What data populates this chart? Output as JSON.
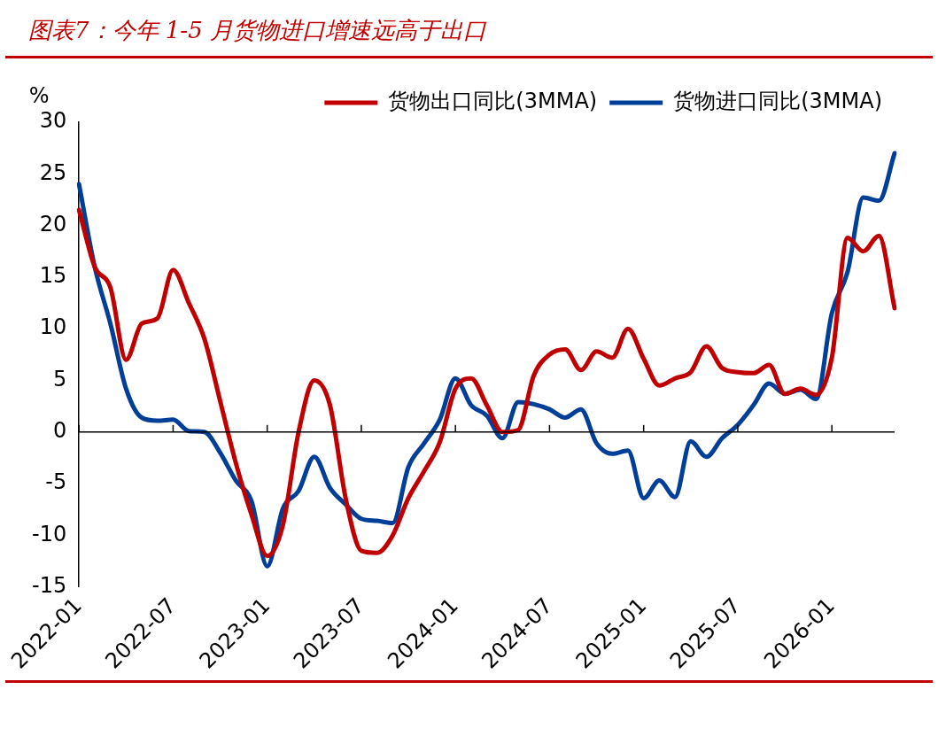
{
  "chart_data": {
    "type": "line",
    "title": "图表7：今年 1-5 月货物进口增速远高于出口",
    "ylabel": "%",
    "categories": [
      "2022-01",
      null,
      null,
      null,
      null,
      null,
      "2022-07",
      null,
      null,
      null,
      null,
      null,
      "2023-01",
      null,
      null,
      null,
      null,
      null,
      "2023-07",
      null,
      null,
      null,
      null,
      null,
      "2024-01",
      null,
      null,
      null,
      null,
      null,
      "2024-07",
      null,
      null,
      null,
      null,
      null,
      "2025-01",
      null,
      null,
      null,
      null,
      null,
      "2025-07",
      null,
      null,
      null,
      null,
      null,
      "2026-01",
      null,
      null,
      null,
      null
    ],
    "series": [
      {
        "name": "货物出口同比(3MMA)",
        "color": "#c00000",
        "values": [
          21.5,
          16,
          14,
          7,
          10.5,
          11,
          15.7,
          12.5,
          9,
          3,
          -3,
          -8,
          -12,
          -9,
          0,
          5,
          2.6,
          -6.4,
          -11.5,
          -11.7,
          -10,
          -6.4,
          -3.8,
          -1,
          4.2,
          5.2,
          2.6,
          0,
          0.2,
          5.5,
          7.5,
          8,
          6,
          7.8,
          7.2,
          10,
          7.1,
          4.5,
          5.2,
          5.8,
          8.3,
          6.2,
          5.8,
          5.7,
          6.5,
          3.7,
          4.2,
          3.6,
          7.2,
          18.8,
          17.5,
          19,
          12
        ]
      },
      {
        "name": "货物进口同比(3MMA)",
        "color": "#003f98",
        "values": [
          24,
          16,
          10.5,
          4.2,
          1.4,
          1.1,
          1.2,
          0.1,
          0,
          -2,
          -4.7,
          -6.7,
          -13,
          -7.4,
          -5.7,
          -2.4,
          -5.4,
          -7,
          -8.4,
          -8.6,
          -8.8,
          -3.4,
          -1.1,
          1.2,
          5.2,
          2.6,
          1.6,
          -0.6,
          2.9,
          2.7,
          2.2,
          1.4,
          2.2,
          -1.1,
          -2.1,
          -1.8,
          -6.4,
          -4.7,
          -6.3,
          -0.9,
          -2.4,
          -0.6,
          0.7,
          2.6,
          4.7,
          3.7,
          4.1,
          3.2,
          11.5,
          15.5,
          22.7,
          22.4,
          27
        ]
      }
    ],
    "ylim": [
      -15,
      30
    ],
    "yticks": [
      -15,
      -10,
      -5,
      0,
      5,
      10,
      15,
      20,
      25,
      30
    ],
    "legend": "top",
    "marker": "none",
    "line_style": "solid"
  }
}
